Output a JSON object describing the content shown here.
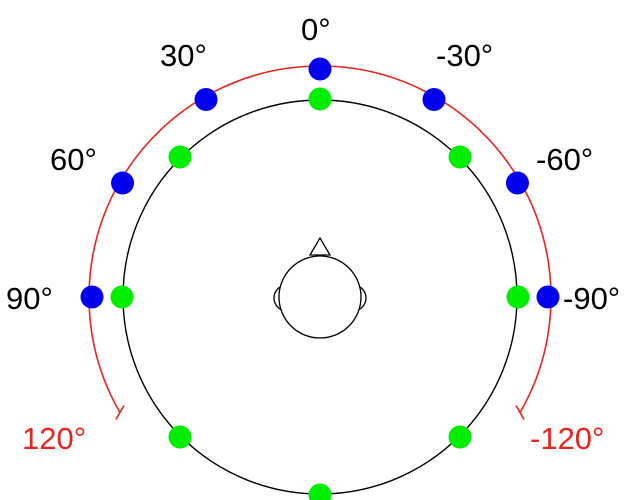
{
  "angle_labels": [
    "0°",
    "30°",
    "-30°",
    "60°",
    "-60°",
    "90°",
    "-90°"
  ],
  "range_labels": [
    "120°",
    "-120°"
  ],
  "blue_markers_deg": [
    0,
    30,
    -30,
    60,
    -60,
    90,
    -90
  ],
  "green_markers_deg": [
    0,
    45,
    -45,
    90,
    -90,
    135,
    -135,
    180
  ],
  "colors": {
    "blue": "#0000ee",
    "green": "#00ee00",
    "arc": "#e8241c",
    "label": "#000000",
    "range_label": "#e8241c",
    "line": "#000000"
  }
}
